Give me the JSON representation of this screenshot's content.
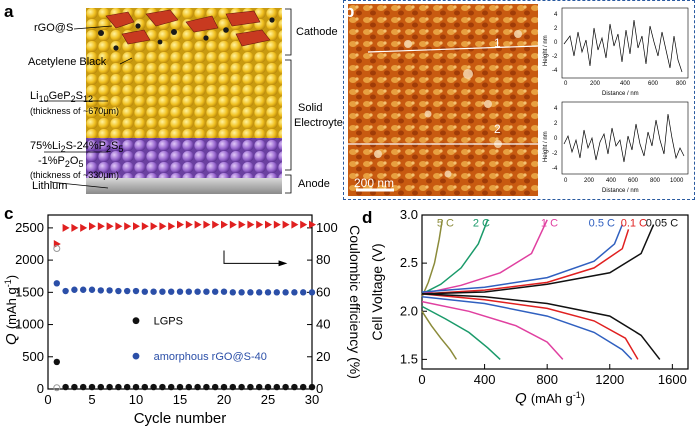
{
  "figure": {
    "panel_a": {
      "letter": "a",
      "left_labels": {
        "rgo_s": "rGO@S",
        "acetylene": "Acetylene Black",
        "lgps_line1": "Li",
        "lgps_sub1": "10",
        "lgps_mid": "GeP",
        "lgps_sub2": "2",
        "lgps_end": "S",
        "lgps_sub3": "12",
        "lgps_thick": "(thickness of ~670μm)",
        "lps_line1": "75%Li",
        "lps_sub1": "2",
        "lps_line1b": "S-24%P",
        "lps_sub2": "2",
        "lps_line1c": "S",
        "lps_sub3": "5",
        "lps_line2": "-1%P",
        "lps_sub4": "2",
        "lps_line2b": "O",
        "lps_sub5": "5",
        "lps_thick": "(thickness of ~330μm)",
        "lithium": "Lithium"
      },
      "right_labels": {
        "cathode": "Cathode",
        "solid1": "Solid",
        "solid2": "Electroyte",
        "anode": "Anode"
      }
    },
    "panel_b": {
      "letter": "b",
      "scale_bar": "200 nm",
      "line_labels": [
        "1",
        "2"
      ],
      "profile_ylabel": "Height / nm",
      "profile_xlabel": "Distance / nm",
      "profile1_yticks": [
        "4",
        "2",
        "0",
        "-2",
        "-4"
      ],
      "profile1_xticks": [
        "0",
        "200",
        "400",
        "600",
        "800"
      ],
      "profile2_yticks": [
        "4",
        "2",
        "0",
        "-2",
        "-4"
      ],
      "profile2_xticks": [
        "0",
        "200",
        "400",
        "600",
        "800",
        "1000"
      ]
    },
    "panel_c": {
      "letter": "c",
      "legend_lgps": "LGPS",
      "legend_amorphous": "amorphous rGO@S-40",
      "ylabel_q": "Q",
      "ylabel_unit": "(mAh g",
      "ylabel_sup": "-1",
      "ylabel_close": ")",
      "ylabel_right": "Coulombic efficiency (%)",
      "xlabel": "Cycle number"
    },
    "panel_d": {
      "letter": "d",
      "ylabel": "Cell Voltage (V)",
      "xlabel_q": "Q",
      "xlabel_unit": "(mAh g",
      "xlabel_sup": "-1",
      "xlabel_close": ")",
      "rate_labels": [
        "5 C",
        "2 C",
        "1 C",
        "0.5 C",
        "0.1 C",
        "0.05 C"
      ]
    }
  },
  "chart_data": [
    {
      "type": "scatter",
      "panel": "c",
      "xlabel": "Cycle number",
      "ylabel": "Q (mAh g-1)",
      "ylabel_right": "Coulombic efficiency (%)",
      "xlim": [
        0,
        30
      ],
      "ylim": [
        0,
        2700
      ],
      "ylim_right": [
        0,
        108
      ],
      "xticks": [
        0,
        5,
        10,
        15,
        20,
        25,
        30
      ],
      "yticks": [
        0,
        500,
        1000,
        1500,
        2000,
        2500
      ],
      "yticks_right": [
        0,
        20,
        40,
        60,
        80,
        100
      ],
      "series": [
        {
          "name": "LGPS capacity",
          "color": "#111111",
          "x": [
            1,
            2,
            3,
            4,
            5,
            6,
            7,
            8,
            9,
            10,
            11,
            12,
            13,
            14,
            15,
            16,
            17,
            18,
            19,
            20,
            21,
            22,
            23,
            24,
            25,
            26,
            27,
            28,
            29,
            30
          ],
          "values": [
            420,
            30,
            30,
            30,
            30,
            30,
            30,
            30,
            30,
            30,
            30,
            30,
            30,
            30,
            30,
            30,
            30,
            30,
            30,
            30,
            30,
            30,
            30,
            30,
            30,
            30,
            30,
            30,
            30,
            30
          ]
        },
        {
          "name": "amorphous rGO@S-40 capacity",
          "color": "#2b4fa8",
          "x": [
            1,
            2,
            3,
            4,
            5,
            6,
            7,
            8,
            9,
            10,
            11,
            12,
            13,
            14,
            15,
            16,
            17,
            18,
            19,
            20,
            21,
            22,
            23,
            24,
            25,
            26,
            27,
            28,
            29,
            30
          ],
          "values": [
            1640,
            1520,
            1540,
            1540,
            1540,
            1530,
            1530,
            1520,
            1520,
            1520,
            1510,
            1510,
            1510,
            1510,
            1510,
            1510,
            1510,
            1510,
            1510,
            1510,
            1500,
            1500,
            1500,
            1500,
            1500,
            1500,
            1500,
            1500,
            1500,
            1500
          ]
        },
        {
          "name": "Coulombic efficiency",
          "color": "#e02020",
          "axis": "right",
          "x": [
            1,
            2,
            3,
            4,
            5,
            6,
            7,
            8,
            9,
            10,
            11,
            12,
            13,
            14,
            15,
            16,
            17,
            18,
            19,
            20,
            21,
            22,
            23,
            24,
            25,
            26,
            27,
            28,
            29,
            30
          ],
          "values": [
            90,
            100,
            100,
            100,
            101,
            101,
            101,
            101,
            101,
            101,
            101,
            101,
            101,
            101,
            102,
            102,
            102,
            102,
            102,
            102,
            102,
            102,
            102,
            102,
            102,
            102,
            102,
            102,
            102,
            102
          ]
        },
        {
          "name": "initial open points",
          "color": "#999999",
          "x": [
            1,
            1
          ],
          "values": [
            2180,
            20
          ]
        }
      ]
    },
    {
      "type": "line",
      "panel": "d",
      "xlabel": "Q (mAh g-1)",
      "ylabel": "Cell Voltage (V)",
      "xlim": [
        0,
        1700
      ],
      "ylim": [
        1.4,
        3.0
      ],
      "xticks": [
        0,
        400,
        800,
        1200,
        1600
      ],
      "yticks": [
        1.5,
        2.0,
        2.5,
        3.0
      ],
      "series": [
        {
          "name": "5 C",
          "color": "#8b8b3a",
          "discharge": [
            [
              0,
              2.0
            ],
            [
              60,
              1.85
            ],
            [
              120,
              1.72
            ],
            [
              180,
              1.6
            ],
            [
              220,
              1.5
            ]
          ],
          "charge": [
            [
              0,
              2.15
            ],
            [
              40,
              2.3
            ],
            [
              80,
              2.5
            ],
            [
              110,
              2.75
            ],
            [
              130,
              2.95
            ]
          ]
        },
        {
          "name": "2 C",
          "color": "#1a9a6a",
          "discharge": [
            [
              0,
              2.05
            ],
            [
              150,
              1.92
            ],
            [
              300,
              1.78
            ],
            [
              420,
              1.62
            ],
            [
              500,
              1.5
            ]
          ],
          "charge": [
            [
              0,
              2.18
            ],
            [
              120,
              2.28
            ],
            [
              250,
              2.45
            ],
            [
              360,
              2.7
            ],
            [
              420,
              2.95
            ]
          ]
        },
        {
          "name": "1 C",
          "color": "#e040a0",
          "discharge": [
            [
              0,
              2.1
            ],
            [
              300,
              2.0
            ],
            [
              600,
              1.85
            ],
            [
              800,
              1.68
            ],
            [
              900,
              1.5
            ]
          ],
          "charge": [
            [
              0,
              2.18
            ],
            [
              250,
              2.27
            ],
            [
              500,
              2.4
            ],
            [
              700,
              2.6
            ],
            [
              800,
              2.95
            ]
          ]
        },
        {
          "name": "0.5 C",
          "color": "#3060c0",
          "discharge": [
            [
              0,
              2.15
            ],
            [
              400,
              2.08
            ],
            [
              800,
              1.95
            ],
            [
              1100,
              1.78
            ],
            [
              1280,
              1.6
            ],
            [
              1340,
              1.5
            ]
          ],
          "charge": [
            [
              0,
              2.2
            ],
            [
              400,
              2.25
            ],
            [
              800,
              2.35
            ],
            [
              1100,
              2.52
            ],
            [
              1230,
              2.7
            ],
            [
              1280,
              2.9
            ]
          ]
        },
        {
          "name": "0.1 C",
          "color": "#e02020",
          "discharge": [
            [
              0,
              2.18
            ],
            [
              400,
              2.12
            ],
            [
              800,
              2.03
            ],
            [
              1100,
              1.9
            ],
            [
              1300,
              1.72
            ],
            [
              1380,
              1.5
            ]
          ],
          "charge": [
            [
              0,
              2.18
            ],
            [
              400,
              2.22
            ],
            [
              800,
              2.3
            ],
            [
              1100,
              2.45
            ],
            [
              1280,
              2.65
            ],
            [
              1320,
              2.85
            ]
          ]
        },
        {
          "name": "0.05 C",
          "color": "#111111",
          "discharge": [
            [
              0,
              2.18
            ],
            [
              400,
              2.15
            ],
            [
              800,
              2.08
            ],
            [
              1200,
              1.95
            ],
            [
              1400,
              1.75
            ],
            [
              1520,
              1.5
            ]
          ],
          "charge": [
            [
              0,
              2.18
            ],
            [
              400,
              2.2
            ],
            [
              800,
              2.28
            ],
            [
              1200,
              2.4
            ],
            [
              1400,
              2.6
            ],
            [
              1480,
              2.9
            ]
          ]
        }
      ]
    }
  ]
}
